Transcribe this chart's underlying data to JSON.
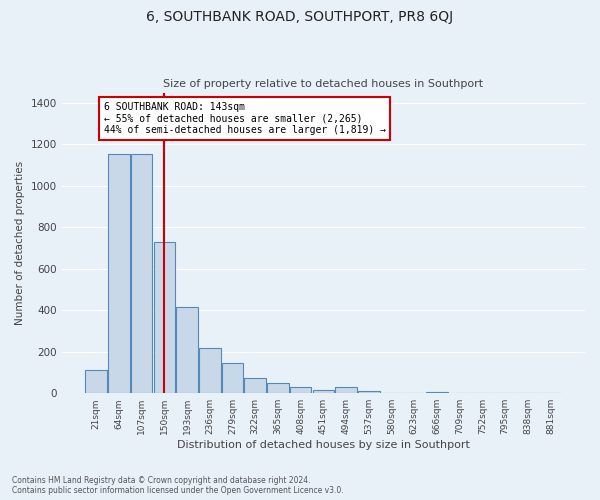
{
  "title": "6, SOUTHBANK ROAD, SOUTHPORT, PR8 6QJ",
  "subtitle": "Size of property relative to detached houses in Southport",
  "xlabel": "Distribution of detached houses by size in Southport",
  "ylabel": "Number of detached properties",
  "bar_labels": [
    "21sqm",
    "64sqm",
    "107sqm",
    "150sqm",
    "193sqm",
    "236sqm",
    "279sqm",
    "322sqm",
    "365sqm",
    "408sqm",
    "451sqm",
    "494sqm",
    "537sqm",
    "580sqm",
    "623sqm",
    "666sqm",
    "709sqm",
    "752sqm",
    "795sqm",
    "838sqm",
    "881sqm"
  ],
  "bar_values": [
    110,
    1155,
    1155,
    730,
    415,
    220,
    145,
    72,
    50,
    32,
    17,
    30,
    12,
    0,
    0,
    8,
    0,
    0,
    0,
    0,
    0
  ],
  "bar_color": "#c8d8e8",
  "bar_edge_color": "#5588bb",
  "vline_x": 3,
  "vline_color": "#cc0000",
  "annotation_line1": "6 SOUTHBANK ROAD: 143sqm",
  "annotation_line2": "← 55% of detached houses are smaller (2,265)",
  "annotation_line3": "44% of semi-detached houses are larger (1,819) →",
  "annotation_box_color": "#ffffff",
  "annotation_box_edge": "#cc0000",
  "ylim": [
    0,
    1450
  ],
  "yticks": [
    0,
    200,
    400,
    600,
    800,
    1000,
    1200,
    1400
  ],
  "footer_line1": "Contains HM Land Registry data © Crown copyright and database right 2024.",
  "footer_line2": "Contains public sector information licensed under the Open Government Licence v3.0.",
  "bg_color": "#e8f0f8",
  "plot_bg_color": "#e8f0f8",
  "grid_color": "#ffffff"
}
